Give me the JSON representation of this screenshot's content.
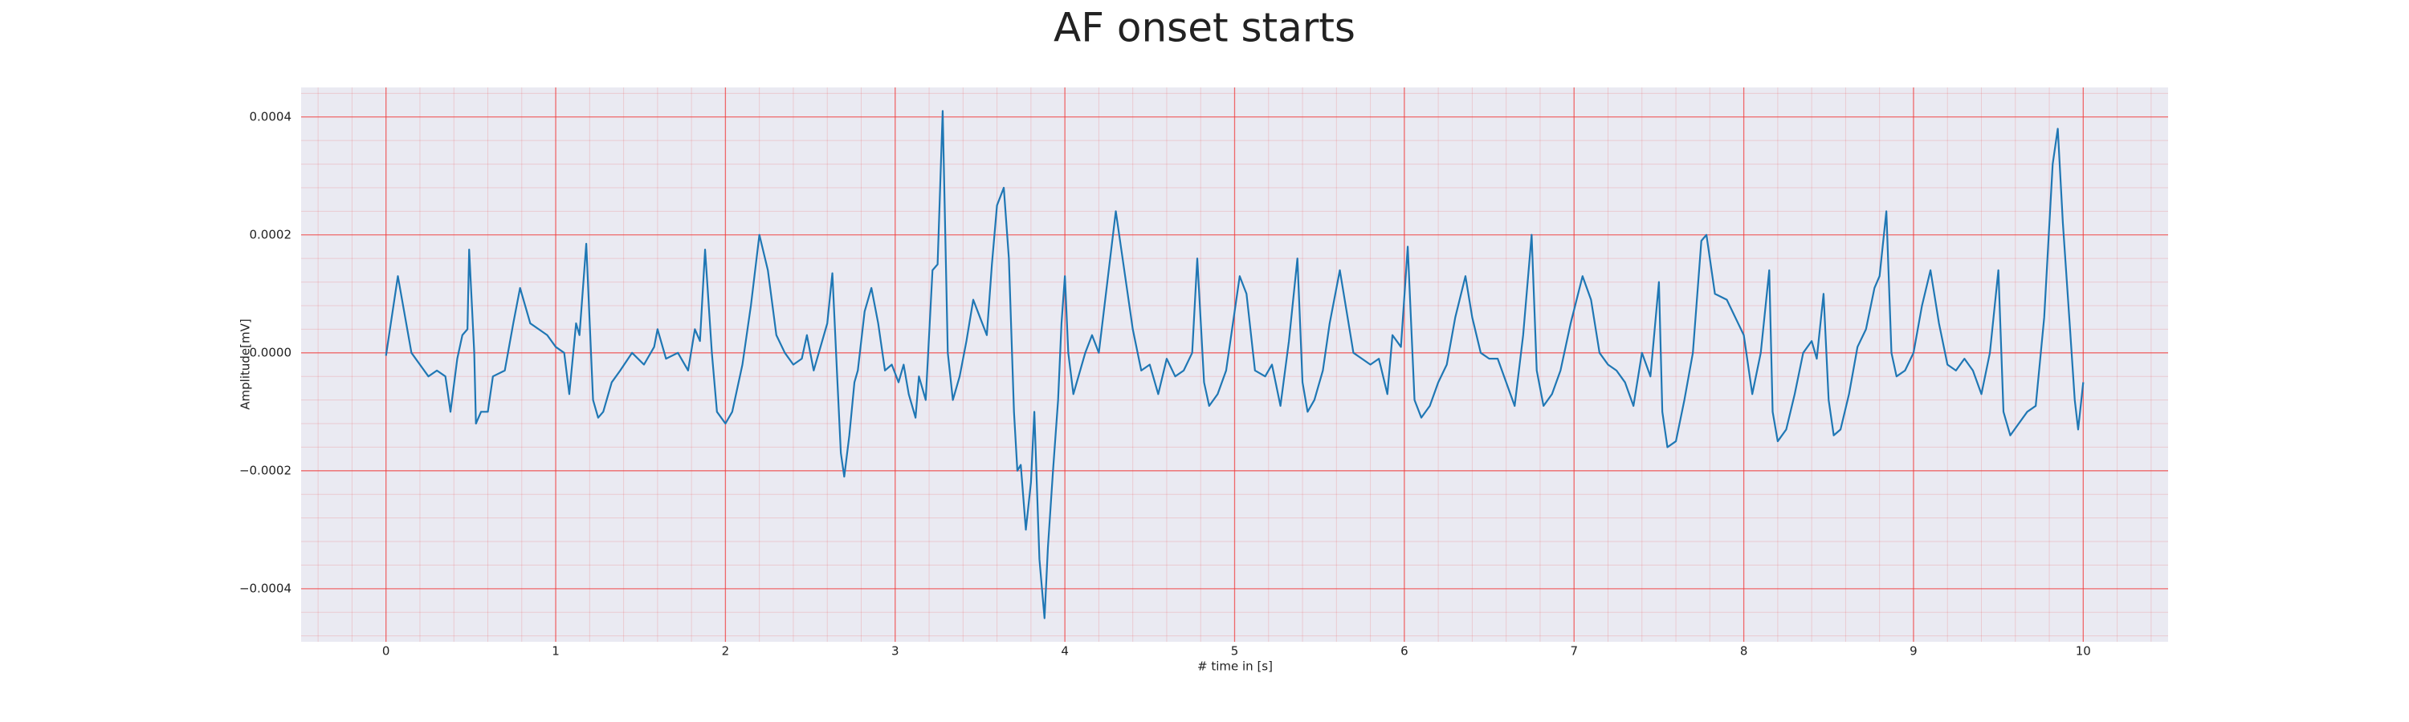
{
  "chart_data": {
    "type": "line",
    "title": "AF onset starts",
    "xlabel": "# time in [s]",
    "ylabel": "Amplitude[mV]",
    "xlim": [
      -0.5,
      10.5
    ],
    "ylim": [
      -0.00049,
      0.00045
    ],
    "xticks": [
      0,
      1,
      2,
      3,
      4,
      5,
      6,
      7,
      8,
      9,
      10
    ],
    "yticks": [
      {
        "value": -0.0004,
        "label": "−0.0004"
      },
      {
        "value": -0.0002,
        "label": "−0.0002"
      },
      {
        "value": 0,
        "label": "0.0000"
      },
      0.0002,
      0.0004
    ],
    "grid": true,
    "minor_grid": true,
    "grid_color": "#f03c3c",
    "background": "#eaeaf2",
    "x": [
      0,
      0.07,
      0.15,
      0.2,
      0.25,
      0.3,
      0.35,
      0.38,
      0.42,
      0.45,
      0.48,
      0.49,
      0.52,
      0.53,
      0.56,
      0.6,
      0.63,
      0.7,
      0.75,
      0.79,
      0.85,
      0.9,
      0.95,
      1.0,
      1.05,
      1.08,
      1.12,
      1.14,
      1.18,
      1.22,
      1.25,
      1.28,
      1.33,
      1.38,
      1.45,
      1.52,
      1.58,
      1.6,
      1.65,
      1.72,
      1.78,
      1.82,
      1.85,
      1.88,
      1.92,
      1.95,
      2.0,
      2.04,
      2.1,
      2.15,
      2.2,
      2.25,
      2.3,
      2.35,
      2.4,
      2.45,
      2.48,
      2.52,
      2.55,
      2.6,
      2.63,
      2.66,
      2.68,
      2.7,
      2.73,
      2.76,
      2.78,
      2.82,
      2.86,
      2.9,
      2.94,
      2.98,
      3.02,
      3.05,
      3.08,
      3.12,
      3.14,
      3.18,
      3.22,
      3.25,
      3.28,
      3.31,
      3.34,
      3.38,
      3.42,
      3.46,
      3.5,
      3.54,
      3.57,
      3.6,
      3.64,
      3.67,
      3.7,
      3.72,
      3.74,
      3.77,
      3.8,
      3.82,
      3.85,
      3.88,
      3.9,
      3.93,
      3.96,
      3.98,
      4.0,
      4.02,
      4.05,
      4.08,
      4.12,
      4.16,
      4.2,
      4.25,
      4.3,
      4.35,
      4.4,
      4.45,
      4.5,
      4.55,
      4.6,
      4.65,
      4.7,
      4.75,
      4.78,
      4.82,
      4.85,
      4.9,
      4.95,
      5.0,
      5.03,
      5.07,
      5.12,
      5.18,
      5.22,
      5.27,
      5.32,
      5.37,
      5.4,
      5.43,
      5.47,
      5.52,
      5.56,
      5.62,
      5.66,
      5.7,
      5.75,
      5.8,
      5.85,
      5.9,
      5.93,
      5.98,
      6.02,
      6.06,
      6.1,
      6.15,
      6.2,
      6.25,
      6.3,
      6.36,
      6.4,
      6.45,
      6.5,
      6.55,
      6.6,
      6.65,
      6.7,
      6.75,
      6.78,
      6.82,
      6.87,
      6.92,
      6.98,
      7.05,
      7.1,
      7.15,
      7.2,
      7.25,
      7.3,
      7.35,
      7.4,
      7.45,
      7.5,
      7.52,
      7.55,
      7.6,
      7.65,
      7.7,
      7.75,
      7.78,
      7.83,
      7.9,
      7.95,
      8.0,
      8.05,
      8.1,
      8.15,
      8.17,
      8.2,
      8.25,
      8.3,
      8.35,
      8.4,
      8.43,
      8.47,
      8.5,
      8.53,
      8.57,
      8.62,
      8.67,
      8.72,
      8.77,
      8.8,
      8.84,
      8.87,
      8.9,
      8.95,
      9.0,
      9.05,
      9.1,
      9.15,
      9.2,
      9.25,
      9.3,
      9.35,
      9.4,
      9.45,
      9.5,
      9.53,
      9.57,
      9.62,
      9.67,
      9.72,
      9.77,
      9.82,
      9.85,
      9.88,
      9.92,
      9.95,
      9.97,
      10.0
    ],
    "series": [
      {
        "color": "#1f77b4",
        "values": [
          -5e-06,
          0.00013,
          0,
          -2e-05,
          -4e-05,
          -3e-05,
          -4e-05,
          -0.0001,
          -1e-05,
          3e-05,
          4e-05,
          0.000175,
          0,
          -0.00012,
          -0.0001,
          -0.0001,
          -4e-05,
          -3e-05,
          5e-05,
          0.00011,
          5e-05,
          4e-05,
          3e-05,
          1e-05,
          0,
          -7e-05,
          5e-05,
          3e-05,
          0.000185,
          -8e-05,
          -0.00011,
          -0.0001,
          -5e-05,
          -3e-05,
          0,
          -2e-05,
          1e-05,
          4e-05,
          -1e-05,
          0,
          -3e-05,
          4e-05,
          2e-05,
          0.000175,
          0,
          -0.0001,
          -0.00012,
          -0.0001,
          -2e-05,
          8e-05,
          0.0002,
          0.00014,
          3e-05,
          0,
          -2e-05,
          -1e-05,
          3e-05,
          -3e-05,
          0,
          5e-05,
          0.000135,
          -5e-05,
          -0.00017,
          -0.00021,
          -0.00014,
          -5e-05,
          -3e-05,
          7e-05,
          0.00011,
          5e-05,
          -3e-05,
          -2e-05,
          -5e-05,
          -2e-05,
          -7e-05,
          -0.00011,
          -4e-05,
          -8e-05,
          0.00014,
          0.00015,
          0.00041,
          0,
          -8e-05,
          -4e-05,
          2e-05,
          9e-05,
          6e-05,
          3e-05,
          0.00015,
          0.00025,
          0.00028,
          0.00016,
          -0.0001,
          -0.0002,
          -0.00019,
          -0.0003,
          -0.00022,
          -0.0001,
          -0.00035,
          -0.00045,
          -0.00033,
          -0.0002,
          -8e-05,
          5e-05,
          0.00013,
          0,
          -7e-05,
          -4e-05,
          0,
          3e-05,
          0,
          0.00012,
          0.00024,
          0.00014,
          4e-05,
          -3e-05,
          -2e-05,
          -7e-05,
          -1e-05,
          -4e-05,
          -3e-05,
          0,
          0.00016,
          -5e-05,
          -9e-05,
          -7e-05,
          -3e-05,
          7e-05,
          0.00013,
          0.0001,
          -3e-05,
          -4e-05,
          -2e-05,
          -9e-05,
          2e-05,
          0.00016,
          -5e-05,
          -0.0001,
          -8e-05,
          -3e-05,
          5e-05,
          0.00014,
          7e-05,
          0,
          -1e-05,
          -2e-05,
          -1e-05,
          -7e-05,
          3e-05,
          1e-05,
          0.00018,
          -8e-05,
          -0.00011,
          -9e-05,
          -5e-05,
          -2e-05,
          6e-05,
          0.00013,
          6e-05,
          0,
          -1e-05,
          -1e-05,
          -5e-05,
          -9e-05,
          3e-05,
          0.0002,
          -3e-05,
          -9e-05,
          -7e-05,
          -3e-05,
          5e-05,
          0.00013,
          9e-05,
          0,
          -2e-05,
          -3e-05,
          -5e-05,
          -9e-05,
          0,
          -4e-05,
          0.00012,
          -0.0001,
          -0.00016,
          -0.00015,
          -8e-05,
          0,
          0.00019,
          0.0002,
          0.0001,
          9e-05,
          6e-05,
          3e-05,
          -7e-05,
          0,
          0.00014,
          -0.0001,
          -0.00015,
          -0.00013,
          -7e-05,
          0,
          2e-05,
          -1e-05,
          0.0001,
          -8e-05,
          -0.00014,
          -0.00013,
          -7e-05,
          1e-05,
          4e-05,
          0.00011,
          0.00013,
          0.00024,
          0,
          -4e-05,
          -3e-05,
          0,
          8e-05,
          0.00014,
          5e-05,
          -2e-05,
          -3e-05,
          -1e-05,
          -3e-05,
          -7e-05,
          0,
          0.00014,
          -0.0001,
          -0.00014,
          -0.00012,
          -0.0001,
          -9e-05,
          6e-05,
          0.00032,
          0.00038,
          0.00022,
          5e-05,
          -8e-05,
          -0.00013,
          -5e-05
        ]
      }
    ]
  }
}
